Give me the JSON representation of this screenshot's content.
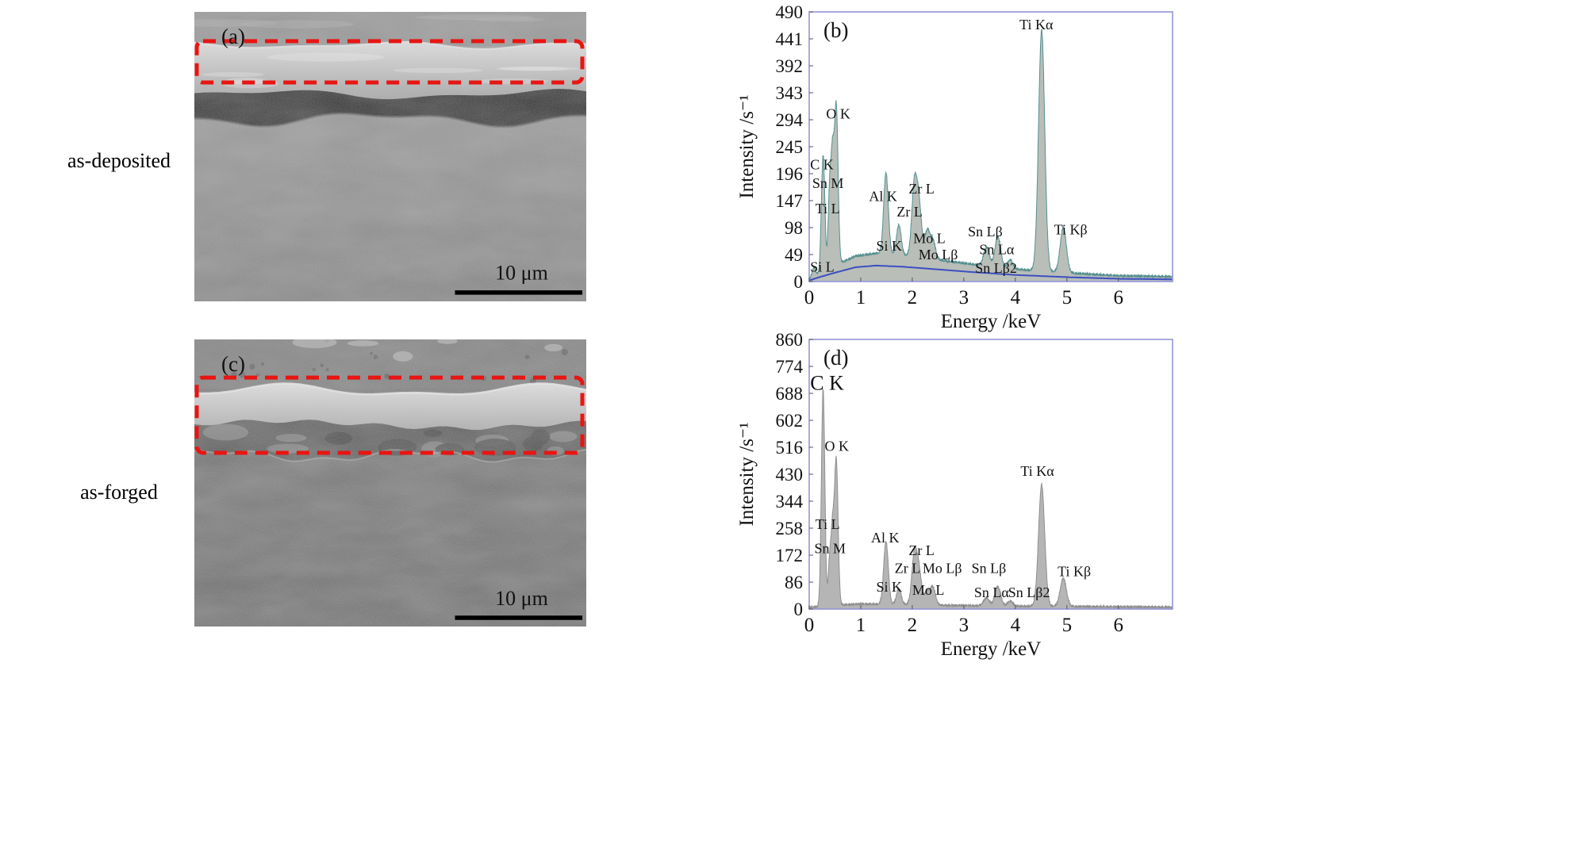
{
  "figure": {
    "highlight_color": "#e81512",
    "scale_bar_color": "#000000",
    "rows": [
      {
        "label": "as-deposited",
        "sem": {
          "panel_label": "(a)",
          "scale_label": "10 μm"
        },
        "spectrum_ref": 0
      },
      {
        "label": "as-forged",
        "sem": {
          "panel_label": "(c)",
          "scale_label": "10 μm"
        },
        "spectrum_ref": 1
      }
    ]
  },
  "chart_data": [
    {
      "id": "spec-b",
      "type": "area",
      "panel_label": "(b)",
      "xlabel": "Energy /keV",
      "ylabel": "Intensity /s⁻¹",
      "xlim": [
        0,
        7.05
      ],
      "ylim": [
        0,
        490
      ],
      "xticks": [
        0,
        1,
        2,
        3,
        4,
        5,
        6
      ],
      "yticks": [
        0,
        49,
        98,
        147,
        196,
        245,
        294,
        343,
        392,
        441,
        490
      ],
      "grid": false,
      "legend": false,
      "noise": 5,
      "background_scale": 1.7,
      "fill_color": "#b9beb9",
      "line_color": "#569090",
      "frame_color": "#9494d8",
      "background_line_color": "#3c4ec2",
      "background": [
        [
          0,
          2
        ],
        [
          0.2,
          8
        ],
        [
          0.5,
          16
        ],
        [
          0.9,
          26
        ],
        [
          1.3,
          29
        ],
        [
          1.8,
          27
        ],
        [
          2.5,
          22
        ],
        [
          3.2,
          17
        ],
        [
          4,
          12
        ],
        [
          5,
          8
        ],
        [
          6,
          5
        ],
        [
          7.05,
          4
        ]
      ],
      "peaks": [
        {
          "label": "Si L",
          "energy": 0.09,
          "intensity": 16,
          "width": 0.03
        },
        {
          "label": "C K",
          "energy": 0.27,
          "intensity": 212,
          "width": 0.033
        },
        {
          "label": "Sn M",
          "energy": 0.4,
          "intensity": 148,
          "width": 0.03
        },
        {
          "label": "Ti L",
          "energy": 0.455,
          "intensity": 170,
          "width": 0.028
        },
        {
          "label": "O K",
          "energy": 0.525,
          "intensity": 288,
          "width": 0.035
        },
        {
          "label": "Al K",
          "energy": 1.49,
          "intensity": 148,
          "width": 0.045
        },
        {
          "label": "Si K",
          "energy": 1.74,
          "intensity": 55,
          "width": 0.045
        },
        {
          "label": "Zr L",
          "energy": 2.04,
          "intensity": 128,
          "width": 0.05
        },
        {
          "label": "Zr L",
          "energy": 2.13,
          "intensity": 92,
          "width": 0.05
        },
        {
          "label": "Mo L",
          "energy": 2.29,
          "intensity": 50,
          "width": 0.05
        },
        {
          "label": "Mo Lβ",
          "energy": 2.4,
          "intensity": 34,
          "width": 0.05
        },
        {
          "label": "Sn Lα",
          "energy": 3.44,
          "intensity": 34,
          "width": 0.055
        },
        {
          "label": "Sn Lβ",
          "energy": 3.66,
          "intensity": 56,
          "width": 0.055
        },
        {
          "label": "Sn Lβ2",
          "energy": 3.9,
          "intensity": 16,
          "width": 0.05
        },
        {
          "label": "Ti Kα",
          "energy": 4.51,
          "intensity": 438,
          "width": 0.06
        },
        {
          "label": "Ti Kβ",
          "energy": 4.93,
          "intensity": 82,
          "width": 0.06
        }
      ],
      "labels": [
        {
          "text": "O K",
          "x": 0.33,
          "y": 296
        },
        {
          "text": "C K",
          "x": 0.02,
          "y": 204
        },
        {
          "text": "Sn M",
          "x": 0.06,
          "y": 170
        },
        {
          "text": "Ti L",
          "x": 0.12,
          "y": 124
        },
        {
          "text": "Si L",
          "x": 0.02,
          "y": 18
        },
        {
          "text": "Al K",
          "x": 1.16,
          "y": 146
        },
        {
          "text": "Zr L",
          "x": 1.93,
          "y": 160
        },
        {
          "text": "Zr L",
          "x": 1.7,
          "y": 118
        },
        {
          "text": "Si K",
          "x": 1.3,
          "y": 56
        },
        {
          "text": "Mo L",
          "x": 2.02,
          "y": 70
        },
        {
          "text": "Mo Lβ",
          "x": 2.12,
          "y": 40
        },
        {
          "text": "Sn Lβ",
          "x": 3.08,
          "y": 82
        },
        {
          "text": "Sn Lα",
          "x": 3.3,
          "y": 50
        },
        {
          "text": "Sn Lβ2",
          "x": 3.22,
          "y": 16
        },
        {
          "text": "Ti Kα",
          "x": 4.08,
          "y": 458
        },
        {
          "text": "Ti Kβ",
          "x": 4.75,
          "y": 86
        }
      ]
    },
    {
      "id": "spec-d",
      "type": "area",
      "panel_label": "(d)",
      "xlabel": "Energy /keV",
      "ylabel": "Intensity /s⁻¹",
      "xlim": [
        0,
        7.05
      ],
      "ylim": [
        0,
        860
      ],
      "xticks": [
        0,
        1,
        2,
        3,
        4,
        5,
        6
      ],
      "yticks": [
        0,
        86,
        172,
        258,
        344,
        430,
        516,
        602,
        688,
        774,
        860
      ],
      "grid": false,
      "legend": false,
      "noise": 8,
      "background_scale": 1.0,
      "fill_color": "#b5b5b5",
      "line_color": "#8f8f8f",
      "frame_color": "#9494d8",
      "background_line_color": null,
      "background": [
        [
          0,
          2
        ],
        [
          0.5,
          9
        ],
        [
          1,
          13
        ],
        [
          1.5,
          12
        ],
        [
          2.5,
          9
        ],
        [
          4,
          6
        ],
        [
          7.05,
          3
        ]
      ],
      "peaks": [
        {
          "label": "C K",
          "energy": 0.27,
          "intensity": 695,
          "width": 0.033
        },
        {
          "label": "Sn M",
          "energy": 0.4,
          "intensity": 150,
          "width": 0.03
        },
        {
          "label": "Ti L",
          "energy": 0.455,
          "intensity": 205,
          "width": 0.028
        },
        {
          "label": "O K",
          "energy": 0.525,
          "intensity": 462,
          "width": 0.035
        },
        {
          "label": "Al K",
          "energy": 1.49,
          "intensity": 200,
          "width": 0.045
        },
        {
          "label": "Si K",
          "energy": 1.74,
          "intensity": 52,
          "width": 0.045
        },
        {
          "label": "Zr L",
          "energy": 2.04,
          "intensity": 158,
          "width": 0.05
        },
        {
          "label": "Zr L",
          "energy": 2.13,
          "intensity": 105,
          "width": 0.05
        },
        {
          "label": "Mo L",
          "energy": 2.29,
          "intensity": 42,
          "width": 0.05
        },
        {
          "label": "Mo Lβ",
          "energy": 2.4,
          "intensity": 56,
          "width": 0.05
        },
        {
          "label": "Sn Lα",
          "energy": 3.44,
          "intensity": 26,
          "width": 0.055
        },
        {
          "label": "Sn Lβ",
          "energy": 3.66,
          "intensity": 62,
          "width": 0.055
        },
        {
          "label": "Sn Lβ2",
          "energy": 3.9,
          "intensity": 16,
          "width": 0.05
        },
        {
          "label": "Ti Kα",
          "energy": 4.51,
          "intensity": 388,
          "width": 0.06
        },
        {
          "label": "Ti Kβ",
          "energy": 4.93,
          "intensity": 90,
          "width": 0.06
        }
      ],
      "labels": [
        {
          "text": "C K",
          "x": 0.02,
          "y": 700,
          "size": 26
        },
        {
          "text": "O K",
          "x": 0.3,
          "y": 505
        },
        {
          "text": "Ti L",
          "x": 0.12,
          "y": 255
        },
        {
          "text": "Sn M",
          "x": 0.1,
          "y": 178
        },
        {
          "text": "Al K",
          "x": 1.2,
          "y": 212
        },
        {
          "text": "Zr L",
          "x": 1.93,
          "y": 172
        },
        {
          "text": "Zr L",
          "x": 1.66,
          "y": 115
        },
        {
          "text": "Mo Lβ",
          "x": 2.2,
          "y": 115
        },
        {
          "text": "Sn Lβ",
          "x": 3.15,
          "y": 115
        },
        {
          "text": "Si K",
          "x": 1.3,
          "y": 56
        },
        {
          "text": "Mo L",
          "x": 2.0,
          "y": 46
        },
        {
          "text": "Sn Lα",
          "x": 3.2,
          "y": 38
        },
        {
          "text": "Sn Lβ2",
          "x": 3.86,
          "y": 38
        },
        {
          "text": "Ti Kα",
          "x": 4.1,
          "y": 425
        },
        {
          "text": "Ti Kβ",
          "x": 4.82,
          "y": 105
        }
      ]
    }
  ]
}
